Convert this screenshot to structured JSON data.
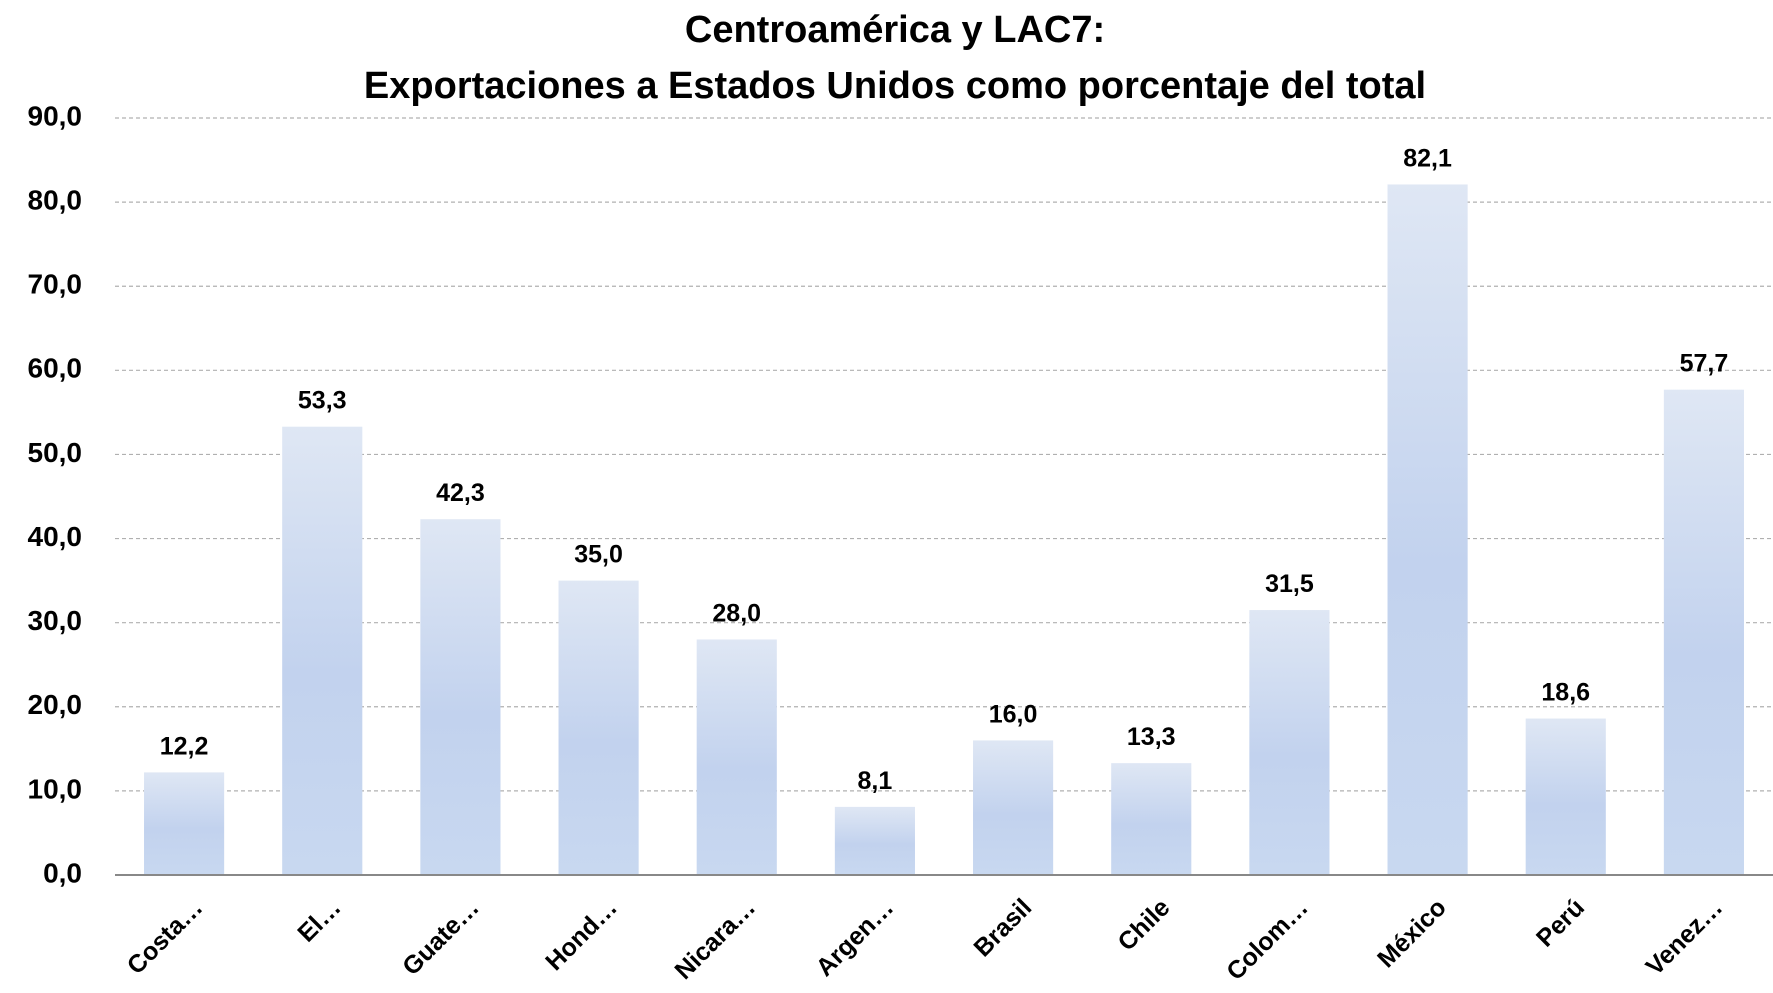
{
  "chart_data": {
    "type": "bar",
    "title": [
      "Centroamérica y LAC7:",
      "Exportaciones a Estados Unidos como porcentaje del total"
    ],
    "categories": [
      "Costa…",
      "El…",
      "Guate…",
      "Hond…",
      "Nicara…",
      "Argen…",
      "Brasil",
      "Chile",
      "Colom…",
      "México",
      "Perú",
      "Venez…"
    ],
    "values": [
      12.2,
      53.3,
      42.3,
      35.0,
      28.0,
      8.1,
      16.0,
      13.3,
      31.5,
      82.1,
      18.6,
      57.7
    ],
    "value_labels": [
      "12,2",
      "53,3",
      "42,3",
      "35,0",
      "28,0",
      "8,1",
      "16,0",
      "13,3",
      "31,5",
      "82,1",
      "18,6",
      "57,7"
    ],
    "color": "#c3d3ee",
    "ylim": [
      0,
      90
    ],
    "yticks": [
      {
        "value": 0,
        "label": "0,0"
      },
      {
        "value": 10,
        "label": "10,0"
      },
      {
        "value": 20,
        "label": "20,0"
      },
      {
        "value": 30,
        "label": "30,0"
      },
      {
        "value": 40,
        "label": "40,0"
      },
      {
        "value": 50,
        "label": "50,0"
      },
      {
        "value": 60,
        "label": "60,0"
      },
      {
        "value": 70,
        "label": "70,0"
      },
      {
        "value": 80,
        "label": "80,0"
      },
      {
        "value": 90,
        "label": "90,0"
      }
    ],
    "grid": true
  }
}
